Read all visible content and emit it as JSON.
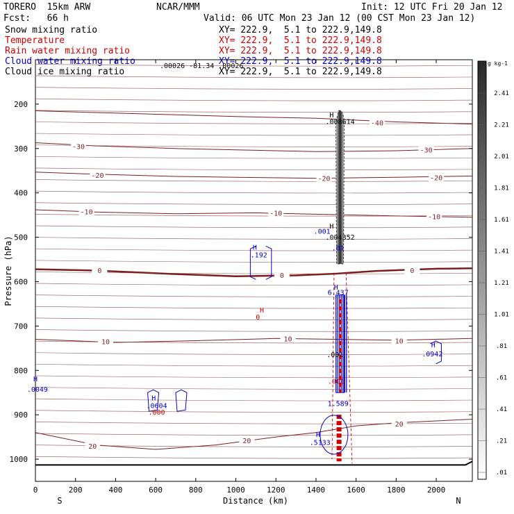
{
  "header": {
    "model": "TORERO  15km ARW",
    "center": "NCAR/MMM",
    "init": "Init: 12 UTC Fri 20 Jan 12",
    "fcst": "Fcst:   66 h",
    "valid": "Valid: 06 UTC Mon 23 Jan 12 (00 CST Mon 23 Jan 12)"
  },
  "fields": [
    {
      "name": "Snow mixing ratio",
      "xy": "XY= 222.9,  5.1 to 222.9,149.8",
      "color": "#000000"
    },
    {
      "name": "Temperature",
      "xy": "XY= 222.9,  5.1 to 222.9,149.8",
      "color": "#cc0000"
    },
    {
      "name": "Rain water mixing ratio",
      "xy": "XY= 222.9,  5.1 to 222.9,149.8",
      "color": "#cc0000"
    },
    {
      "name": "Cloud water mixing ratio",
      "xy": "XY= 222.9,  5.1 to 222.9,149.8",
      "color": "#0000cc"
    },
    {
      "name": "Cloud ice mixing ratio",
      "xy": "XY= 222.9,  5.1 to 222.9,149.8",
      "color": "#000000"
    }
  ],
  "overlap_text": ".00026  -81.34  .00026",
  "chart_data": {
    "type": "contour",
    "xlabel": "Distance (km)",
    "ylabel": "Pressure (hPa)",
    "xlim": [
      0,
      2180
    ],
    "ylim": [
      1050,
      100
    ],
    "x_ticks": [
      0,
      200,
      400,
      600,
      800,
      1000,
      1200,
      1400,
      1600,
      1800,
      2000
    ],
    "y_ticks": [
      200,
      300,
      400,
      500,
      600,
      700,
      800,
      900,
      1000
    ],
    "left_end": "S",
    "right_end": "N",
    "temperature_contours": [
      {
        "label": "-40",
        "label_x": 1705,
        "label_p": 242,
        "points": [
          [
            0,
            215
          ],
          [
            300,
            219
          ],
          [
            700,
            224
          ],
          [
            1000,
            228
          ],
          [
            1400,
            232
          ],
          [
            1800,
            240
          ],
          [
            2180,
            245
          ]
        ]
      },
      {
        "label": "-30",
        "label_x": 215,
        "label_p": 295,
        "points": [
          [
            0,
            287
          ],
          [
            300,
            294
          ],
          [
            700,
            300
          ],
          [
            1000,
            303
          ],
          [
            1400,
            307
          ],
          [
            1800,
            305
          ],
          [
            2180,
            300
          ]
        ]
      },
      {
        "label": "-30",
        "label_x": 1950,
        "label_p": 303,
        "points": [
          [
            0,
            287
          ],
          [
            300,
            294
          ],
          [
            700,
            300
          ],
          [
            1000,
            303
          ],
          [
            1400,
            307
          ],
          [
            1800,
            305
          ],
          [
            2180,
            300
          ]
        ]
      },
      {
        "label": "-20",
        "label_x": 310,
        "label_p": 360,
        "points": [
          [
            0,
            353
          ],
          [
            300,
            358
          ],
          [
            700,
            363
          ],
          [
            1000,
            365
          ],
          [
            1400,
            367
          ],
          [
            1800,
            365
          ],
          [
            2180,
            362
          ]
        ]
      },
      {
        "label": "-20",
        "label_x": 1440,
        "label_p": 367,
        "points": [
          [
            0,
            353
          ],
          [
            300,
            358
          ],
          [
            700,
            363
          ],
          [
            1000,
            365
          ],
          [
            1400,
            367
          ],
          [
            1800,
            365
          ],
          [
            2180,
            362
          ]
        ]
      },
      {
        "label": "-20",
        "label_x": 2000,
        "label_p": 365,
        "points": [
          [
            0,
            353
          ],
          [
            300,
            358
          ],
          [
            700,
            363
          ],
          [
            1000,
            365
          ],
          [
            1400,
            367
          ],
          [
            1800,
            365
          ],
          [
            2180,
            362
          ]
        ]
      },
      {
        "label": "-10",
        "label_x": 255,
        "label_p": 442,
        "points": [
          [
            0,
            438
          ],
          [
            300,
            443
          ],
          [
            700,
            447
          ],
          [
            1100,
            445
          ],
          [
            1400,
            448
          ],
          [
            1800,
            452
          ],
          [
            2180,
            455
          ]
        ]
      },
      {
        "label": "-10",
        "label_x": 1200,
        "label_p": 445,
        "points": [
          [
            0,
            438
          ],
          [
            300,
            443
          ],
          [
            700,
            447
          ],
          [
            1100,
            445
          ],
          [
            1400,
            448
          ],
          [
            1800,
            452
          ],
          [
            2180,
            455
          ]
        ]
      },
      {
        "label": "-10",
        "label_x": 1990,
        "label_p": 453,
        "points": [
          [
            0,
            438
          ],
          [
            300,
            443
          ],
          [
            700,
            447
          ],
          [
            1100,
            445
          ],
          [
            1400,
            448
          ],
          [
            1800,
            452
          ],
          [
            2180,
            455
          ]
        ]
      },
      {
        "label": "0",
        "label_x": 320,
        "label_p": 574,
        "points": [
          [
            0,
            572
          ],
          [
            300,
            575
          ],
          [
            700,
            583
          ],
          [
            1000,
            588
          ],
          [
            1300,
            586
          ],
          [
            1500,
            582
          ],
          [
            1700,
            576
          ],
          [
            2000,
            571
          ],
          [
            2180,
            570
          ]
        ]
      },
      {
        "label": "0",
        "label_x": 1880,
        "label_p": 574,
        "points": [
          [
            0,
            572
          ],
          [
            300,
            575
          ],
          [
            700,
            583
          ],
          [
            1000,
            588
          ],
          [
            1300,
            586
          ],
          [
            1500,
            582
          ],
          [
            1700,
            576
          ],
          [
            2000,
            571
          ],
          [
            2180,
            570
          ]
        ]
      },
      {
        "label": "0",
        "label_x": 1230,
        "label_p": 585,
        "points": [
          [
            0,
            572
          ],
          [
            300,
            575
          ],
          [
            700,
            583
          ],
          [
            1000,
            588
          ],
          [
            1300,
            586
          ],
          [
            1500,
            582
          ],
          [
            1700,
            576
          ],
          [
            2000,
            571
          ],
          [
            2180,
            570
          ]
        ]
      },
      {
        "label": "10",
        "label_x": 350,
        "label_p": 735,
        "points": [
          [
            0,
            730
          ],
          [
            400,
            737
          ],
          [
            800,
            733
          ],
          [
            1200,
            728
          ],
          [
            1500,
            730
          ],
          [
            1800,
            732
          ],
          [
            2180,
            728
          ]
        ]
      },
      {
        "label": "10",
        "label_x": 1260,
        "label_p": 728,
        "points": [
          [
            0,
            730
          ],
          [
            400,
            737
          ],
          [
            800,
            733
          ],
          [
            1200,
            728
          ],
          [
            1500,
            730
          ],
          [
            1800,
            732
          ],
          [
            2180,
            728
          ]
        ]
      },
      {
        "label": "10",
        "label_x": 1815,
        "label_p": 733,
        "points": [
          [
            0,
            730
          ],
          [
            400,
            737
          ],
          [
            800,
            733
          ],
          [
            1200,
            728
          ],
          [
            1500,
            730
          ],
          [
            1800,
            732
          ],
          [
            2180,
            728
          ]
        ]
      },
      {
        "label": "20",
        "label_x": 1055,
        "label_p": 958,
        "points": [
          [
            0,
            940
          ],
          [
            300,
            968
          ],
          [
            600,
            978
          ],
          [
            900,
            968
          ],
          [
            1200,
            950
          ],
          [
            1400,
            940
          ],
          [
            1600,
            925
          ],
          [
            1800,
            918
          ],
          [
            2180,
            910
          ]
        ]
      },
      {
        "label": "20",
        "label_x": 285,
        "label_p": 970,
        "points": [
          [
            0,
            940
          ],
          [
            300,
            968
          ],
          [
            600,
            978
          ],
          [
            900,
            968
          ],
          [
            1200,
            950
          ],
          [
            1400,
            940
          ],
          [
            1600,
            925
          ],
          [
            1800,
            918
          ],
          [
            2180,
            910
          ]
        ]
      },
      {
        "label": "20",
        "label_x": 1815,
        "label_p": 920,
        "points": [
          [
            0,
            940
          ],
          [
            300,
            968
          ],
          [
            600,
            978
          ],
          [
            900,
            968
          ],
          [
            1200,
            950
          ],
          [
            1400,
            940
          ],
          [
            1600,
            925
          ],
          [
            1800,
            918
          ],
          [
            2180,
            910
          ]
        ]
      }
    ],
    "annotations": [
      {
        "text": "H",
        "x": 1478,
        "p": 230,
        "color": "#000000"
      },
      {
        "text": ".008614",
        "x": 1520,
        "p": 245,
        "color": "#000000"
      },
      {
        "text": "H",
        "x": 1478,
        "p": 480,
        "color": "#000000"
      },
      {
        "text": ".004352",
        "x": 1520,
        "p": 505,
        "color": "#000000"
      },
      {
        "text": ".001",
        "x": 1430,
        "p": 492,
        "color": "#0000cc"
      },
      {
        "text": "H",
        "x": 1095,
        "p": 528,
        "color": "#0000cc"
      },
      {
        "text": ".192",
        "x": 1115,
        "p": 545,
        "color": "#0000cc"
      },
      {
        "text": ".01",
        "x": 1510,
        "p": 530,
        "color": "#0000cc"
      },
      {
        "text": "H",
        "x": 1500,
        "p": 618,
        "color": "#0000cc"
      },
      {
        "text": "6.437",
        "x": 1510,
        "p": 630,
        "color": "#0000cc"
      },
      {
        "text": "H",
        "x": 1130,
        "p": 670,
        "color": "#cc0000"
      },
      {
        "text": "0",
        "x": 1110,
        "p": 685,
        "color": "#cc0000"
      },
      {
        "text": ".001",
        "x": 1495,
        "p": 770,
        "color": "#000000"
      },
      {
        "text": ".001",
        "x": 1500,
        "p": 830,
        "color": "#cc0000"
      },
      {
        "text": "H",
        "x": 1985,
        "p": 748,
        "color": "#0000cc"
      },
      {
        "text": ".0942",
        "x": 1980,
        "p": 768,
        "color": "#0000cc"
      },
      {
        "text": "H",
        "x": 0,
        "p": 825,
        "color": "#0000cc"
      },
      {
        "text": ".0049",
        "x": 10,
        "p": 848,
        "color": "#0000cc"
      },
      {
        "text": "H",
        "x": 590,
        "p": 868,
        "color": "#0000cc"
      },
      {
        "text": ".0604",
        "x": 605,
        "p": 885,
        "color": "#0000cc"
      },
      {
        "text": ".000",
        "x": 605,
        "p": 900,
        "color": "#cc0000"
      },
      {
        "text": "1.589",
        "x": 1510,
        "p": 880,
        "color": "#0000cc"
      },
      {
        "text": "H",
        "x": 1410,
        "p": 950,
        "color": "#0000cc"
      },
      {
        "text": ".5133",
        "x": 1420,
        "p": 968,
        "color": "#0000cc"
      }
    ],
    "colorbar": {
      "unit": "g kg-1",
      "ticks": [
        "2.41",
        "2.21",
        "2.01",
        "1.81",
        "1.61",
        "1.41",
        "1.21",
        "1.01",
        ".81",
        ".61",
        ".41",
        ".21",
        ".01"
      ]
    },
    "ground_line_p": 1013,
    "grid": false
  }
}
